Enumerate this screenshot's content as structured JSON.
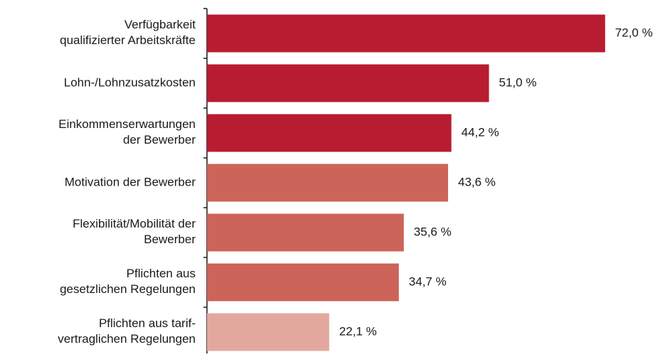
{
  "chart_data": {
    "type": "hbar",
    "categories": [
      "Verfügbarkeit\nqualifizierter Arbeitskräfte",
      "Lohn-/Lohnzusatzkosten",
      "Einkommenserwartungen\nder Bewerber",
      "Motivation der Bewerber",
      "Flexibilität/Mobilität der\nBewerber",
      "Pflichten aus\ngesetzlichen Regelungen",
      "Pflichten aus tarif-\nvertraglichen Regelungen"
    ],
    "values": [
      72.0,
      51.0,
      44.2,
      43.6,
      35.6,
      34.7,
      22.1
    ],
    "value_labels": [
      "72,0 %",
      "51,0 %",
      "44,2 %",
      "43,6 %",
      "35,6 %",
      "34,7 %",
      "22,1 %"
    ],
    "colors": [
      "#b81c30",
      "#b81c30",
      "#b81c30",
      "#cc6459",
      "#cc6459",
      "#cc6459",
      "#e3a89d"
    ],
    "xlim": [
      0,
      80
    ]
  }
}
